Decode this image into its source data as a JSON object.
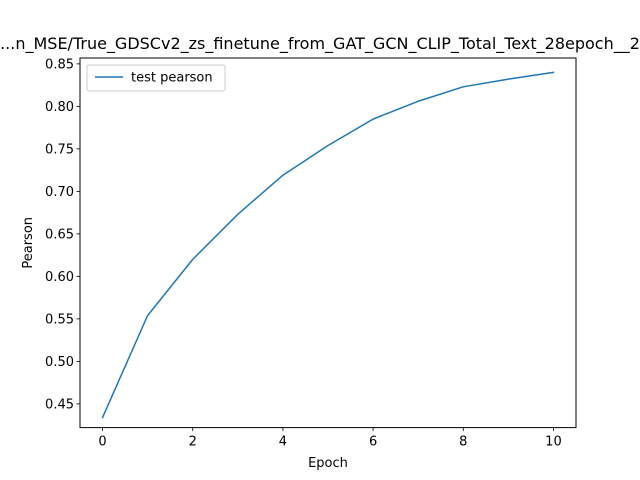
{
  "chart_data": {
    "type": "line",
    "title": "...n_MSE/True_GDSCv2_zs_finetune_from_GAT_GCN_CLIP_Total_Text_28epoch__2",
    "xlabel": "Epoch",
    "ylabel": "Pearson",
    "x": [
      0,
      1,
      2,
      3,
      4,
      5,
      6,
      7,
      8,
      9,
      10
    ],
    "series": [
      {
        "name": "test pearson",
        "color": "#1f77b4",
        "values": [
          0.434,
          0.554,
          0.62,
          0.673,
          0.719,
          0.754,
          0.785,
          0.806,
          0.823,
          0.832,
          0.84
        ]
      }
    ],
    "xlim": [
      -0.5,
      10.5
    ],
    "ylim": [
      0.4221,
      0.8569
    ],
    "xticks": [
      0,
      2,
      4,
      6,
      8,
      10
    ],
    "xtick_labels": [
      "0",
      "2",
      "4",
      "6",
      "8",
      "10"
    ],
    "yticks": [
      0.45,
      0.5,
      0.55,
      0.6,
      0.65,
      0.7,
      0.75,
      0.8,
      0.85
    ],
    "ytick_labels": [
      "0.45",
      "0.50",
      "0.55",
      "0.60",
      "0.65",
      "0.70",
      "0.75",
      "0.80",
      "0.85"
    ],
    "grid": false,
    "legend_position": "upper-left"
  }
}
